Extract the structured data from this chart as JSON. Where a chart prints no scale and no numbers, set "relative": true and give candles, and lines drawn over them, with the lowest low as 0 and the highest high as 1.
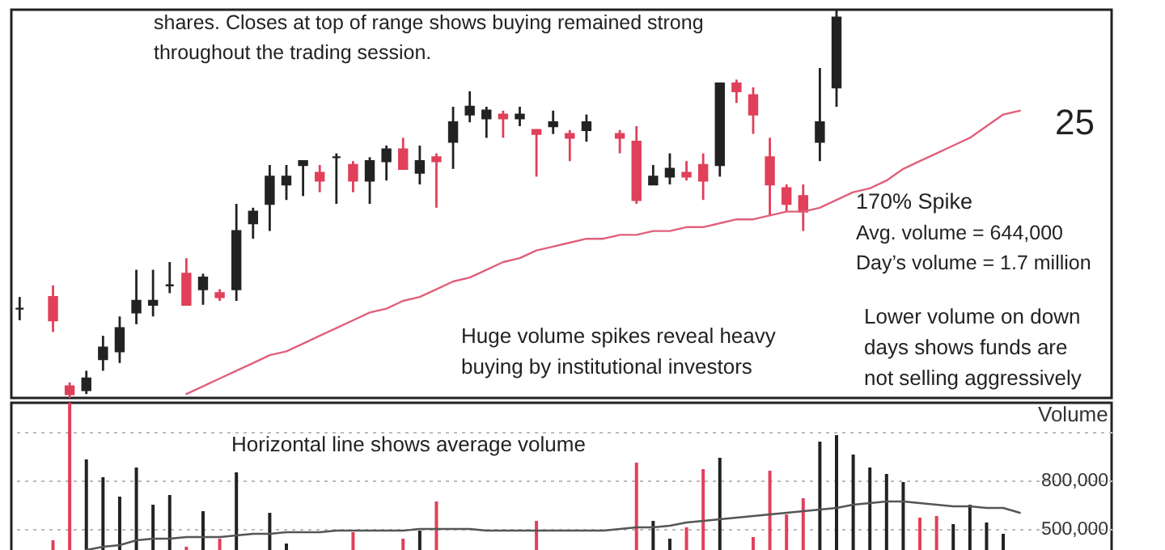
{
  "chart_data": [
    {
      "type": "candlestick",
      "relative": true,
      "tick_labels": false,
      "categories": [
        null,
        null,
        null,
        null,
        null,
        null,
        null,
        null,
        null,
        null,
        null,
        null,
        null,
        null,
        null,
        null,
        null,
        null,
        null,
        null,
        null,
        null,
        null,
        null,
        null,
        null,
        null,
        null,
        null,
        null,
        null,
        null,
        null,
        null,
        null,
        null,
        null,
        null,
        null,
        null,
        null,
        null,
        null,
        null,
        null,
        null,
        null,
        null,
        null,
        null,
        null,
        null,
        null,
        null,
        null,
        null,
        null,
        null,
        null,
        null,
        null,
        null,
        null,
        null,
        null,
        null
      ],
      "ohlc": [
        [
          0.23,
          0.26,
          0.2,
          0.23
        ],
        null,
        [
          0.26,
          0.29,
          0.17,
          0.2
        ],
        [
          0.03,
          0.04,
          0,
          0.01
        ],
        [
          0.02,
          0.07,
          0.01,
          0.05
        ],
        [
          0.1,
          0.16,
          0.07,
          0.13
        ],
        [
          0.12,
          0.21,
          0.09,
          0.18
        ],
        [
          0.22,
          0.33,
          0.19,
          0.25
        ],
        [
          0.24,
          0.33,
          0.21,
          0.25
        ],
        [
          0.29,
          0.35,
          0.27,
          0.29
        ],
        [
          0.32,
          0.36,
          0.24,
          0.24
        ],
        [
          0.28,
          0.32,
          0.24,
          0.31
        ],
        [
          0.27,
          0.28,
          0.25,
          0.26
        ],
        [
          0.28,
          0.5,
          0.25,
          0.43
        ],
        [
          0.45,
          0.49,
          0.41,
          0.48
        ],
        [
          0.5,
          0.6,
          0.43,
          0.57
        ],
        [
          0.55,
          0.6,
          0.51,
          0.57
        ],
        [
          0.6,
          0.61,
          0.52,
          0.61
        ],
        [
          0.58,
          0.6,
          0.53,
          0.56
        ],
        [
          0.62,
          0.63,
          0.5,
          0.62
        ],
        [
          0.6,
          0.61,
          0.53,
          0.56
        ],
        [
          0.56,
          0.62,
          0.5,
          0.61
        ],
        [
          0.61,
          0.65,
          0.56,
          0.64
        ],
        [
          0.64,
          0.67,
          0.59,
          0.59
        ],
        [
          0.58,
          0.65,
          0.55,
          0.61
        ],
        [
          0.62,
          0.63,
          0.49,
          0.61
        ],
        [
          0.66,
          0.75,
          0.59,
          0.71
        ],
        [
          0.73,
          0.79,
          0.71,
          0.75
        ],
        [
          0.72,
          0.75,
          0.67,
          0.74
        ],
        [
          0.73,
          0.74,
          0.67,
          0.72
        ],
        [
          0.72,
          0.75,
          0.7,
          0.73
        ],
        [
          0.69,
          0.69,
          0.57,
          0.68
        ],
        [
          0.7,
          0.74,
          0.68,
          0.71
        ],
        [
          0.68,
          0.69,
          0.61,
          0.67
        ],
        [
          0.69,
          0.73,
          0.66,
          0.71
        ],
        null,
        [
          0.68,
          0.69,
          0.63,
          0.67
        ],
        [
          0.66,
          0.7,
          0.5,
          0.51
        ],
        [
          0.55,
          0.6,
          0.55,
          0.57
        ],
        [
          0.57,
          0.63,
          0.55,
          0.59
        ],
        [
          0.58,
          0.61,
          0.56,
          0.57
        ],
        [
          0.6,
          0.63,
          0.51,
          0.56
        ],
        [
          0.6,
          0.81,
          0.57,
          0.81
        ],
        [
          0.81,
          0.82,
          0.76,
          0.79
        ],
        [
          0.78,
          0.8,
          0.68,
          0.73
        ],
        [
          0.62,
          0.67,
          0.47,
          0.55
        ],
        [
          0.54,
          0.55,
          0.48,
          0.5
        ],
        [
          0.52,
          0.55,
          0.43,
          0.48
        ],
        [
          0.66,
          0.85,
          0.61,
          0.71
        ],
        [
          0.8,
          1,
          0.75,
          0.98
        ],
        null,
        null,
        null,
        null,
        null,
        null,
        null,
        null,
        null,
        null,
        null,
        null,
        null,
        null,
        null,
        null
      ],
      "colors": [
        "#222222",
        null,
        "#e0405a",
        "#e0405a",
        "#222222",
        "#222222",
        "#222222",
        "#222222",
        "#222222",
        "#222222",
        "#e0405a",
        "#222222",
        "#e0405a",
        "#222222",
        "#222222",
        "#222222",
        "#222222",
        "#222222",
        "#e0405a",
        "#222222",
        "#e0405a",
        "#222222",
        "#222222",
        "#e0405a",
        "#222222",
        "#e0405a",
        "#222222",
        "#222222",
        "#222222",
        "#e0405a",
        "#222222",
        "#e0405a",
        "#222222",
        "#e0405a",
        "#222222",
        null,
        "#e0405a",
        "#e0405a",
        "#222222",
        "#222222",
        "#e0405a",
        "#e0405a",
        "#222222",
        "#e0405a",
        "#e0405a",
        "#e0405a",
        "#e0405a",
        "#e0405a",
        "#222222",
        "#222222",
        null,
        null,
        null,
        null,
        null,
        null,
        null,
        null,
        null,
        null,
        null,
        null,
        null,
        null,
        null,
        null
      ],
      "series": [
        {
          "type": "line",
          "color": "#e0607a",
          "values": [
            null,
            null,
            null,
            null,
            null,
            null,
            null,
            null,
            null,
            null,
            0.01,
            0.03,
            0.05,
            0.07,
            0.09,
            0.11,
            0.12,
            0.14,
            0.16,
            0.18,
            0.2,
            0.22,
            0.23,
            0.25,
            0.26,
            0.28,
            0.3,
            0.31,
            0.33,
            0.35,
            0.36,
            0.38,
            0.39,
            0.4,
            0.41,
            0.41,
            0.42,
            0.42,
            0.43,
            0.43,
            0.44,
            0.44,
            0.45,
            0.46,
            0.46,
            0.47,
            0.48,
            0.48,
            0.49,
            0.51,
            0.53,
            0.54,
            0.56,
            0.59,
            0.61,
            0.63,
            0.65,
            0.67,
            0.7,
            0.73,
            0.74,
            null,
            null,
            null,
            null,
            null
          ]
        }
      ],
      "annotations": [
        "shares. Closes at top of range shows buying remained strong\nthroughout the trading session.",
        "25",
        "170% Spike",
        "Avg. volume = 644,000\nDay’s volume = 1.7 million",
        "Huge volume spikes reveal heavy\nbuying by institutional investors",
        "Lower volume on down\ndays shows funds are\nnot selling aggressively"
      ]
    },
    {
      "type": "bar",
      "tick_labels": "y",
      "ylabel": "Volume",
      "ylim": [
        360000,
        1280000
      ],
      "yticks": [
        {
          "value": 500000,
          "label": "500,000"
        },
        {
          "value": 800000,
          "label": "800,000"
        },
        {
          "value": 1100000,
          "label": null
        }
      ],
      "grid": "y",
      "categories": [
        null,
        null,
        null,
        null,
        null,
        null,
        null,
        null,
        null,
        null,
        null,
        null,
        null,
        null,
        null,
        null,
        null,
        null,
        null,
        null,
        null,
        null,
        null,
        null,
        null,
        null,
        null,
        null,
        null,
        null,
        null,
        null,
        null,
        null,
        null,
        null,
        null,
        null,
        null,
        null,
        null,
        null,
        null,
        null,
        null,
        null,
        null,
        null,
        null,
        null,
        null,
        null,
        null,
        null,
        null,
        null,
        null,
        null,
        null,
        null,
        null,
        null,
        null,
        null,
        null,
        null
      ],
      "series": [
        {
          "values": [
            null,
            null,
            430000,
            1280000,
            930000,
            820000,
            700000,
            880000,
            650000,
            710000,
            390000,
            610000,
            440000,
            850000,
            null,
            600000,
            410000,
            null,
            null,
            null,
            480000,
            null,
            null,
            440000,
            490000,
            670000,
            null,
            null,
            null,
            null,
            null,
            550000,
            null,
            null,
            null,
            null,
            null,
            910000,
            550000,
            440000,
            510000,
            870000,
            940000,
            null,
            450000,
            860000,
            590000,
            690000,
            1040000,
            1080000,
            960000,
            880000,
            840000,
            790000,
            570000,
            580000,
            530000,
            650000,
            540000,
            470000,
            null,
            null,
            null,
            null,
            null,
            null
          ],
          "colors": [
            null,
            null,
            "#e0405a",
            "#e0405a",
            "#222222",
            "#222222",
            "#222222",
            "#222222",
            "#222222",
            "#222222",
            "#e0405a",
            "#222222",
            "#e0405a",
            "#222222",
            null,
            "#222222",
            "#222222",
            null,
            null,
            null,
            "#e0405a",
            null,
            null,
            "#e0405a",
            "#222222",
            "#e0405a",
            null,
            null,
            null,
            null,
            null,
            "#e0405a",
            null,
            null,
            null,
            null,
            null,
            "#e0405a",
            "#222222",
            "#222222",
            "#e0405a",
            "#e0405a",
            "#222222",
            null,
            "#e0405a",
            "#e0405a",
            "#e0405a",
            "#e0405a",
            "#222222",
            "#222222",
            "#222222",
            "#222222",
            "#222222",
            "#222222",
            "#e0405a",
            "#e0405a",
            "#222222",
            "#222222",
            "#222222",
            "#222222",
            null,
            null,
            null,
            null,
            null,
            null
          ]
        },
        {
          "type": "line",
          "color": "#555555",
          "values": [
            null,
            null,
            null,
            null,
            370000,
            390000,
            400000,
            430000,
            440000,
            440000,
            450000,
            450000,
            450000,
            460000,
            470000,
            470000,
            480000,
            480000,
            480000,
            490000,
            490000,
            490000,
            490000,
            490000,
            500000,
            500000,
            500000,
            500000,
            490000,
            490000,
            490000,
            490000,
            490000,
            490000,
            490000,
            490000,
            500000,
            510000,
            510000,
            520000,
            540000,
            550000,
            560000,
            570000,
            580000,
            590000,
            600000,
            610000,
            620000,
            630000,
            650000,
            660000,
            670000,
            670000,
            660000,
            650000,
            640000,
            640000,
            630000,
            630000,
            600000,
            null,
            null,
            null,
            null,
            null
          ]
        }
      ],
      "annotations": [
        "Horizontal line shows average volume"
      ]
    }
  ]
}
